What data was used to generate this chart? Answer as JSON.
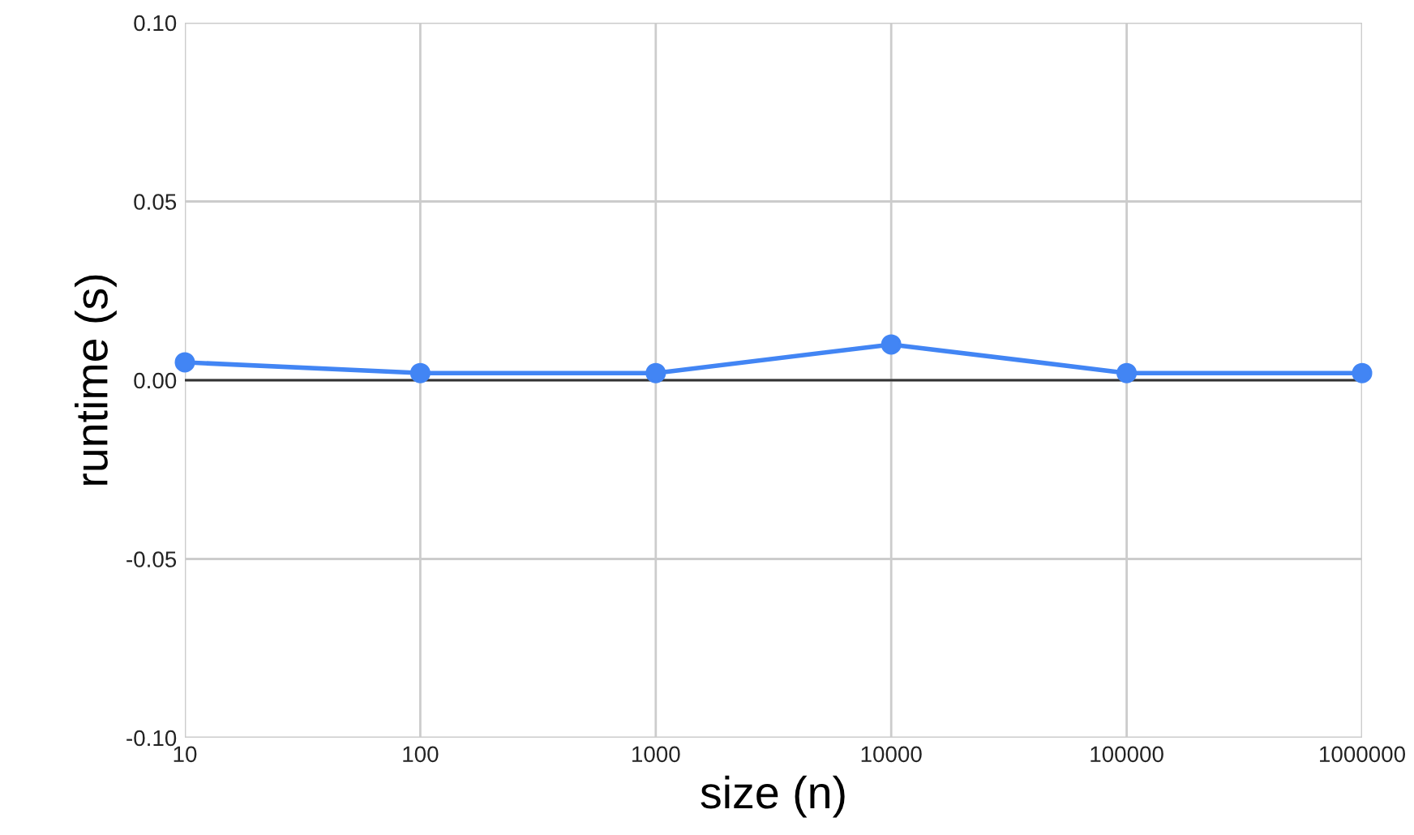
{
  "chart_data": {
    "type": "line",
    "xlabel": "size (n)",
    "ylabel": "runtime (s)",
    "x": [
      10,
      100,
      1000,
      10000,
      100000,
      1000000
    ],
    "series": [
      {
        "color": "#4285f4",
        "values": [
          0.005,
          0.002,
          0.002,
          0.01,
          0.002,
          0.002
        ]
      }
    ],
    "log": "x",
    "xlim": [
      10,
      1000000
    ],
    "xticks": [
      10,
      100,
      1000,
      10000,
      100000,
      1000000
    ],
    "ylim": [
      -0.1,
      0.1
    ],
    "yticks": [
      {
        "value": -0.1,
        "label": "-0.10"
      },
      {
        "value": -0.05,
        "label": "-0.05"
      },
      {
        "value": 0,
        "label": "0.00"
      },
      {
        "value": 0.05,
        "label": "0.05"
      },
      {
        "value": 0.1,
        "label": "0.10"
      }
    ],
    "grid": true,
    "marker": "circle",
    "line_style": "solid",
    "ref_lines": [
      {
        "axis": "y",
        "value": 0,
        "color": "#333333"
      }
    ]
  }
}
